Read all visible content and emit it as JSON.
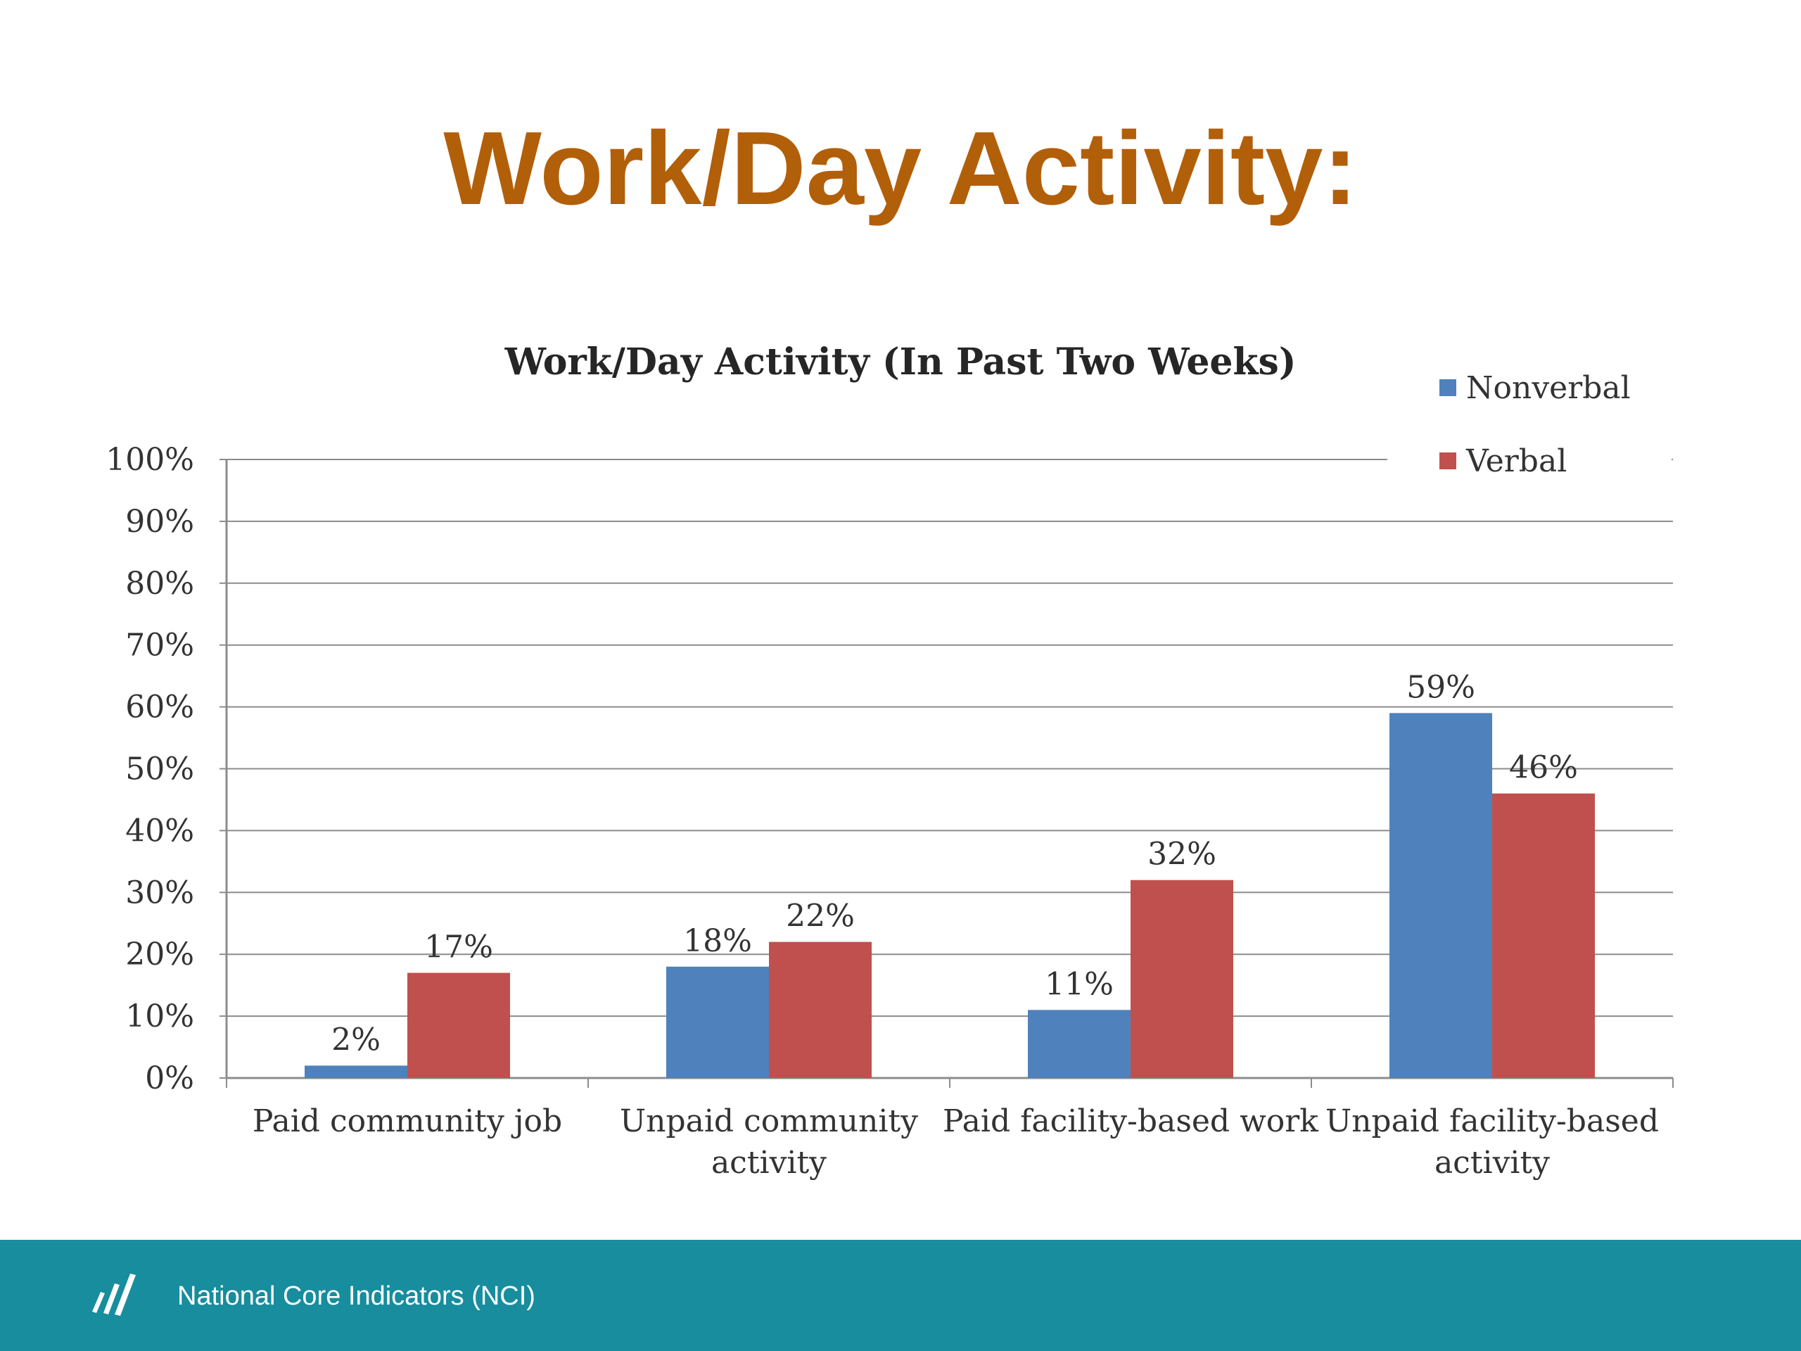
{
  "slide": {
    "title": "Work/Day Activity:"
  },
  "footer": {
    "text": "National Core Indicators (NCI)",
    "logo_icon": "nci-logo-icon"
  },
  "chart_data": {
    "type": "bar",
    "title": "Work/Day Activity (In Past Two Weeks)",
    "xlabel": "",
    "ylabel": "",
    "categories": [
      "Paid community job",
      "Unpaid community activity",
      "Paid facility-based work",
      "Unpaid facility-based activity"
    ],
    "category_lines": [
      [
        "Paid community job"
      ],
      [
        "Unpaid community",
        "activity"
      ],
      [
        "Paid facility-based work"
      ],
      [
        "Unpaid facility-based",
        "activity"
      ]
    ],
    "series": [
      {
        "name": "Nonverbal",
        "values": [
          2,
          18,
          11,
          59
        ],
        "labels": [
          "2%",
          "18%",
          "11%",
          "59%"
        ],
        "color": "#4f81bd"
      },
      {
        "name": "Verbal",
        "values": [
          17,
          22,
          32,
          46
        ],
        "labels": [
          "17%",
          "22%",
          "32%",
          "46%"
        ],
        "color": "#c0504d"
      }
    ],
    "ylim": [
      0,
      100
    ],
    "yticks": [
      0,
      10,
      20,
      30,
      40,
      50,
      60,
      70,
      80,
      90,
      100
    ],
    "ytick_labels": [
      "0%",
      "10%",
      "20%",
      "30%",
      "40%",
      "50%",
      "60%",
      "70%",
      "80%",
      "90%",
      "100%"
    ],
    "grid": true,
    "legend_position": "top-right"
  }
}
